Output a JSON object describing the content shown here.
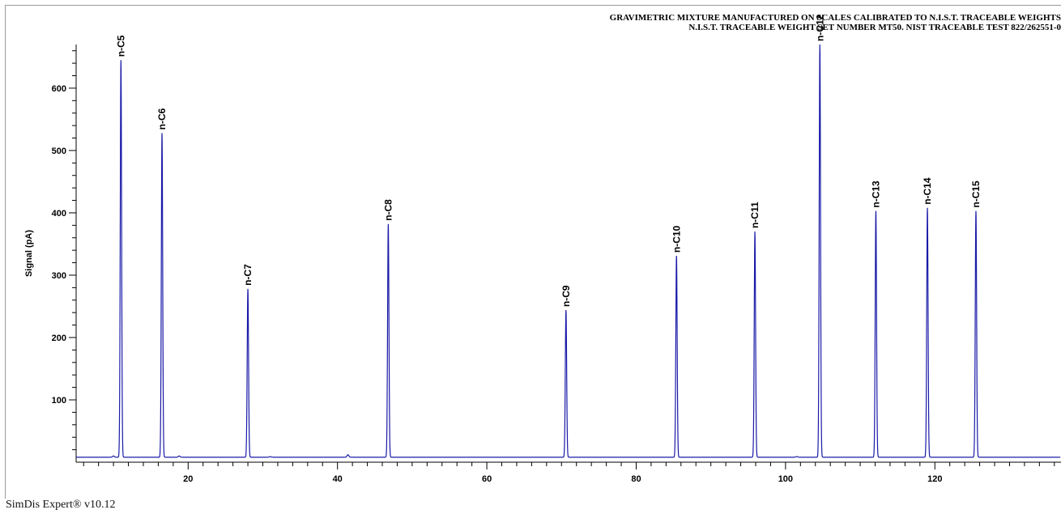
{
  "window": {
    "title_line_1": "GRAVIMETRIC MIXTURE MANUFACTURED ON SCALES CALIBRATED TO N.I.S.T. TRACEABLE WEIGHTS",
    "title_line_2": "N.I.S.T. TRACEABLE WEIGHT SET NUMBER MT50. NIST TRACEABLE TEST 822/262551-0",
    "footer": "SimDis Expert® v10.12"
  },
  "colors": {
    "trace": "#1a1aa8",
    "axis": "#000000",
    "frame": "#9a9a9a"
  },
  "chart_data": {
    "type": "line",
    "title": "GRAVIMETRIC MIXTURE MANUFACTURED ON SCALES CALIBRATED TO N.I.S.T. TRACEABLE WEIGHTS",
    "subtitle": "N.I.S.T. TRACEABLE WEIGHT SET NUMBER MT50. NIST TRACEABLE TEST 822/262551-0",
    "xlabel": "",
    "ylabel": "Signal (pA)",
    "xlim": [
      5,
      137
    ],
    "ylim": [
      0,
      670
    ],
    "baseline": 8,
    "x_ticks": [
      20,
      40,
      60,
      80,
      100,
      120
    ],
    "y_ticks": [
      100,
      200,
      300,
      400,
      500,
      600
    ],
    "grid": false,
    "peaks": [
      {
        "label": "n-C5",
        "x": 11.0,
        "y": 645
      },
      {
        "label": "n-C6",
        "x": 16.5,
        "y": 528
      },
      {
        "label": "n-C7",
        "x": 28.0,
        "y": 278
      },
      {
        "label": "n-C8",
        "x": 46.8,
        "y": 382
      },
      {
        "label": "n-C9",
        "x": 70.6,
        "y": 244
      },
      {
        "label": "n-C10",
        "x": 85.4,
        "y": 331
      },
      {
        "label": "n-C11",
        "x": 95.9,
        "y": 370
      },
      {
        "label": "n-C12",
        "x": 104.6,
        "y": 670
      },
      {
        "label": "n-C13",
        "x": 112.1,
        "y": 403
      },
      {
        "label": "n-C14",
        "x": 119.0,
        "y": 408
      },
      {
        "label": "n-C15",
        "x": 125.5,
        "y": 403
      }
    ],
    "minor_peaks": [
      {
        "x": 10.0,
        "y": 10
      },
      {
        "x": 18.8,
        "y": 10
      },
      {
        "x": 31.0,
        "y": 9
      },
      {
        "x": 41.4,
        "y": 12
      },
      {
        "x": 101.5,
        "y": 9
      }
    ]
  }
}
